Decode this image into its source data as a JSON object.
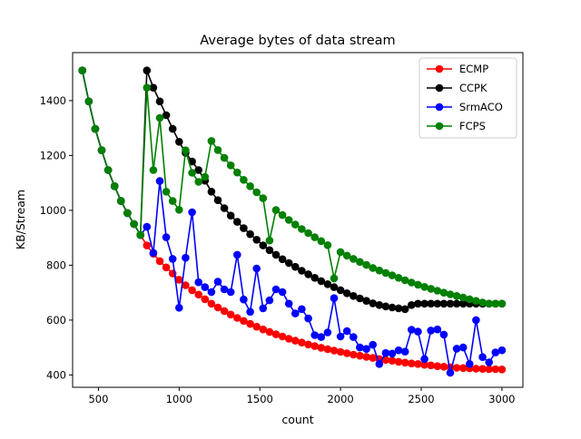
{
  "chart_data": {
    "type": "line",
    "title": "Average bytes of data stream",
    "xlabel": "count",
    "ylabel": "KB/Stream",
    "xlim": [
      340,
      3130
    ],
    "ylim": [
      355,
      1575
    ],
    "xticks": [
      500,
      1000,
      1500,
      2000,
      2500,
      3000
    ],
    "yticks": [
      400,
      600,
      800,
      1000,
      1200,
      1400
    ],
    "grid": false,
    "legend_position": "top-right",
    "series": [
      {
        "name": "ECMP",
        "color": "#ff0000",
        "x": [
          400,
          440,
          480,
          520,
          560,
          600,
          640,
          680,
          720,
          760,
          800,
          840,
          880,
          920,
          960,
          1000,
          1040,
          1080,
          1120,
          1160,
          1200,
          1240,
          1280,
          1320,
          1360,
          1400,
          1440,
          1480,
          1520,
          1560,
          1600,
          1640,
          1680,
          1720,
          1760,
          1800,
          1840,
          1880,
          1920,
          1960,
          2000,
          2040,
          2080,
          2120,
          2160,
          2200,
          2240,
          2280,
          2320,
          2360,
          2400,
          2440,
          2480,
          2520,
          2560,
          2600,
          2640,
          2680,
          2720,
          2760,
          2800,
          2840,
          2880,
          2920,
          2960,
          3000
        ],
        "y": [
          1510,
          1397,
          1297,
          1219,
          1147,
          1088,
          1034,
          990,
          950,
          910,
          872,
          842,
          815,
          792,
          770,
          747,
          727,
          709,
          693,
          676,
          660,
          646,
          633,
          620,
          608,
          597,
          586,
          576,
          566,
          557,
          548,
          540,
          532,
          525,
          518,
          511,
          505,
          499,
          494,
          489,
          484,
          479,
          474,
          470,
          466,
          462,
          458,
          455,
          452,
          448,
          445,
          442,
          440,
          437,
          435,
          432,
          430,
          428,
          426,
          425,
          424,
          423,
          422,
          421,
          421,
          420
        ]
      },
      {
        "name": "CCPK",
        "color": "#000000",
        "x": [
          400,
          440,
          480,
          520,
          560,
          600,
          640,
          680,
          720,
          760,
          800,
          840,
          880,
          920,
          960,
          1000,
          1040,
          1080,
          1120,
          1160,
          1200,
          1240,
          1280,
          1320,
          1360,
          1400,
          1440,
          1480,
          1520,
          1560,
          1600,
          1640,
          1680,
          1720,
          1760,
          1800,
          1840,
          1880,
          1920,
          1960,
          2000,
          2040,
          2080,
          2120,
          2160,
          2200,
          2240,
          2280,
          2320,
          2360,
          2400,
          2440,
          2480,
          2520,
          2560,
          2600,
          2640,
          2680,
          2720,
          2760,
          2800,
          2840,
          2880,
          2920,
          2960,
          3000
        ],
        "y": [
          1510,
          1397,
          1297,
          1219,
          1147,
          1088,
          1034,
          990,
          950,
          910,
          1510,
          1447,
          1397,
          1347,
          1297,
          1250,
          1210,
          1178,
          1147,
          1108,
          1068,
          1037,
          1008,
          981,
          958,
          935,
          913,
          893,
          872,
          855,
          838,
          822,
          808,
          794,
          780,
          767,
          754,
          742,
          731,
          720,
          709,
          698,
          688,
          679,
          670,
          661,
          655,
          650,
          646,
          643,
          640,
          655,
          660,
          660,
          660,
          660,
          660,
          660,
          660,
          660,
          660,
          660,
          660,
          660,
          660,
          660
        ]
      },
      {
        "name": "SrmACO",
        "color": "#0000ff",
        "x": [
          400,
          440,
          480,
          520,
          560,
          600,
          640,
          680,
          720,
          760,
          800,
          840,
          880,
          920,
          960,
          1000,
          1040,
          1080,
          1120,
          1160,
          1200,
          1240,
          1280,
          1320,
          1360,
          1400,
          1440,
          1480,
          1520,
          1560,
          1600,
          1640,
          1680,
          1720,
          1760,
          1800,
          1840,
          1880,
          1920,
          1960,
          2000,
          2040,
          2080,
          2120,
          2160,
          2200,
          2240,
          2280,
          2320,
          2360,
          2400,
          2440,
          2480,
          2520,
          2560,
          2600,
          2640,
          2680,
          2720,
          2760,
          2800,
          2840,
          2880,
          2920,
          2960,
          3000
        ],
        "y": [
          1510,
          1397,
          1297,
          1219,
          1147,
          1088,
          1034,
          990,
          950,
          910,
          940,
          845,
          1107,
          902,
          823,
          645,
          827,
          993,
          738,
          720,
          702,
          740,
          712,
          702,
          838,
          675,
          630,
          788,
          643,
          672,
          712,
          702,
          660,
          624,
          640,
          606,
          545,
          538,
          555,
          680,
          540,
          560,
          538,
          500,
          495,
          510,
          440,
          480,
          478,
          490,
          485,
          565,
          558,
          458,
          562,
          566,
          547,
          408,
          496,
          500,
          440,
          600,
          465,
          446,
          482,
          490
        ]
      },
      {
        "name": "FCPS",
        "color": "#008000",
        "x": [
          400,
          440,
          480,
          520,
          560,
          600,
          640,
          680,
          720,
          760,
          800,
          840,
          880,
          920,
          960,
          1000,
          1040,
          1080,
          1120,
          1160,
          1200,
          1240,
          1280,
          1320,
          1360,
          1400,
          1440,
          1480,
          1520,
          1560,
          1600,
          1640,
          1680,
          1720,
          1760,
          1800,
          1840,
          1880,
          1920,
          1960,
          2000,
          2040,
          2080,
          2120,
          2160,
          2200,
          2240,
          2280,
          2320,
          2360,
          2400,
          2440,
          2480,
          2520,
          2560,
          2600,
          2640,
          2680,
          2720,
          2760,
          2800,
          2840,
          2880,
          2920,
          2960,
          3000
        ],
        "y": [
          1510,
          1397,
          1297,
          1219,
          1147,
          1088,
          1034,
          990,
          950,
          910,
          1447,
          1147,
          1337,
          1068,
          1034,
          1002,
          1219,
          1137,
          1104,
          1122,
          1253,
          1220,
          1191,
          1164,
          1138,
          1111,
          1088,
          1066,
          1044,
          890,
          1001,
          983,
          965,
          948,
          932,
          917,
          902,
          888,
          873,
          752,
          848,
          835,
          823,
          812,
          801,
          790,
          781,
          772,
          763,
          754,
          745,
          737,
          729,
          721,
          714,
          707,
          700,
          694,
          688,
          682,
          676,
          670,
          664,
          660,
          660,
          660
        ]
      }
    ]
  }
}
